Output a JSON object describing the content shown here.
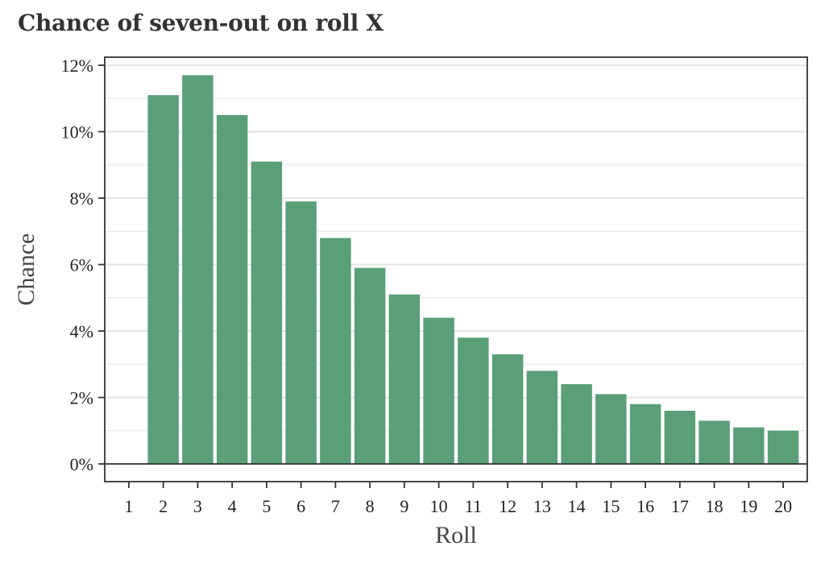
{
  "chart_data": {
    "type": "bar",
    "title": "Chance of seven-out on roll X",
    "xlabel": "Roll",
    "ylabel": "Chance",
    "categories": [
      "1",
      "2",
      "3",
      "4",
      "5",
      "6",
      "7",
      "8",
      "9",
      "10",
      "11",
      "12",
      "13",
      "14",
      "15",
      "16",
      "17",
      "18",
      "19",
      "20"
    ],
    "values": [
      0,
      11.1,
      11.7,
      10.5,
      9.1,
      7.9,
      6.8,
      5.9,
      5.1,
      4.4,
      3.8,
      3.3,
      2.8,
      2.4,
      2.1,
      1.8,
      1.6,
      1.3,
      1.1,
      1.0
    ],
    "yticks": [
      "0%",
      "2%",
      "4%",
      "6%",
      "8%",
      "10%",
      "12%"
    ],
    "ylim": [
      0,
      12
    ],
    "xlim": [
      0.3,
      20.7
    ],
    "grid": true,
    "bar_color": "#5a9f78",
    "grid_color": "#e5e5e5",
    "axis_color": "#333333"
  }
}
